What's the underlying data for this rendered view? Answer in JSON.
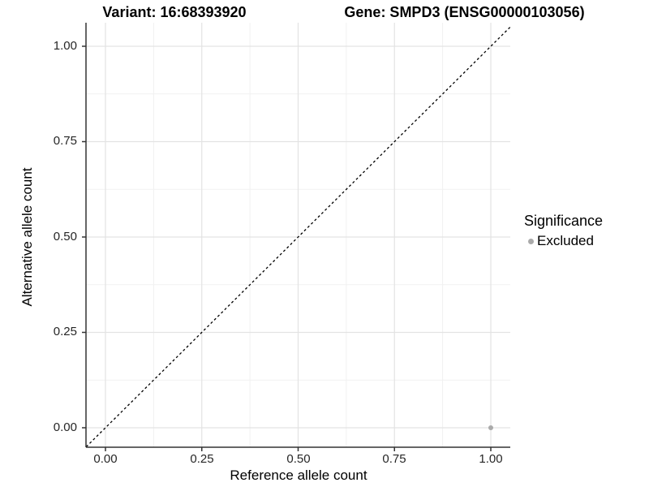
{
  "figure": {
    "title_left": "Variant: 16:68393920",
    "title_right": "Gene: SMPD3 (ENSG00000103056)"
  },
  "chart_data": {
    "type": "scatter",
    "titles": [
      "Variant: 16:68393920",
      "Gene: SMPD3 (ENSG00000103056)"
    ],
    "xlabel": "Reference allele count",
    "ylabel": "Alternative allele count",
    "xlim": [
      -0.05,
      1.05
    ],
    "ylim": [
      -0.05,
      1.05
    ],
    "x_ticks": {
      "values": [
        0,
        0.25,
        0.5,
        0.75,
        1.0
      ],
      "labels": [
        "0.00",
        "0.25",
        "0.50",
        "0.75",
        "1.00"
      ]
    },
    "y_ticks": {
      "values": [
        0,
        0.25,
        0.5,
        0.75,
        1.0
      ],
      "labels": [
        "0.00",
        "0.25",
        "0.50",
        "0.75",
        "1.00"
      ]
    },
    "minor_gridlines": [
      0.125,
      0.375,
      0.625,
      0.875
    ],
    "grid": "on",
    "identity_line": {
      "style": "dashed",
      "color": "#000000",
      "from": [
        -0.05,
        -0.05
      ],
      "to": [
        1.05,
        1.05
      ]
    },
    "series": [
      {
        "name": "Excluded",
        "color": "#aaaaaa",
        "points": [
          {
            "x": 1.0,
            "y": 0.0
          }
        ]
      }
    ],
    "legend": {
      "title": "Significance",
      "position": "right",
      "items": [
        {
          "label": "Excluded",
          "color": "#aaaaaa"
        }
      ]
    },
    "colors": {
      "background": "#ffffff",
      "grid_major": "#e3e3e3",
      "grid_minor": "#f1f1f1",
      "axis": "#333333",
      "text": "#000000"
    }
  }
}
